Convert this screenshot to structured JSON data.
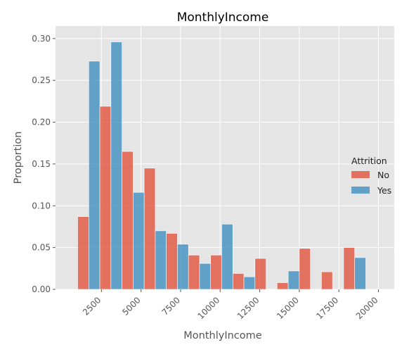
{
  "chart_data": {
    "type": "bar",
    "title": "MonthlyIncome",
    "xlabel": "MonthlyIncome",
    "ylabel": "Proportion",
    "xlim": [
      -400,
      21000
    ],
    "ylim": [
      0,
      0.315
    ],
    "xticks": [
      2500,
      5000,
      7500,
      10000,
      12500,
      15000,
      17500,
      20000
    ],
    "yticks": [
      0.0,
      0.05,
      0.1,
      0.15,
      0.2,
      0.25,
      0.3
    ],
    "ytick_labels": [
      "0.00",
      "0.05",
      "0.10",
      "0.15",
      "0.20",
      "0.25",
      "0.30"
    ],
    "grid": true,
    "background": "#e5e5e5",
    "legend": {
      "title": "Attrition",
      "placement": "right"
    },
    "bins": [
      [
        1000,
        2400
      ],
      [
        2400,
        3800
      ],
      [
        3800,
        5200
      ],
      [
        5200,
        6600
      ],
      [
        6600,
        8000
      ],
      [
        8000,
        9400
      ],
      [
        9400,
        10800
      ],
      [
        10800,
        12200
      ],
      [
        12200,
        13600
      ],
      [
        13600,
        15000
      ],
      [
        15000,
        16400
      ],
      [
        16400,
        17800
      ],
      [
        17800,
        19200
      ],
      [
        19200,
        20600
      ]
    ],
    "series": [
      {
        "name": "No",
        "color": "#e24a33",
        "values": [
          0.087,
          0.219,
          0.165,
          0.145,
          0.067,
          0.041,
          0.041,
          0.019,
          0.037,
          0.008,
          0.049,
          0.021,
          0.05,
          0.0
        ]
      },
      {
        "name": "Yes",
        "color": "#348abd",
        "values": [
          0.273,
          0.296,
          0.116,
          0.07,
          0.054,
          0.031,
          0.078,
          0.015,
          0.0,
          0.022,
          0.0,
          0.0,
          0.038,
          0.0
        ]
      }
    ]
  }
}
